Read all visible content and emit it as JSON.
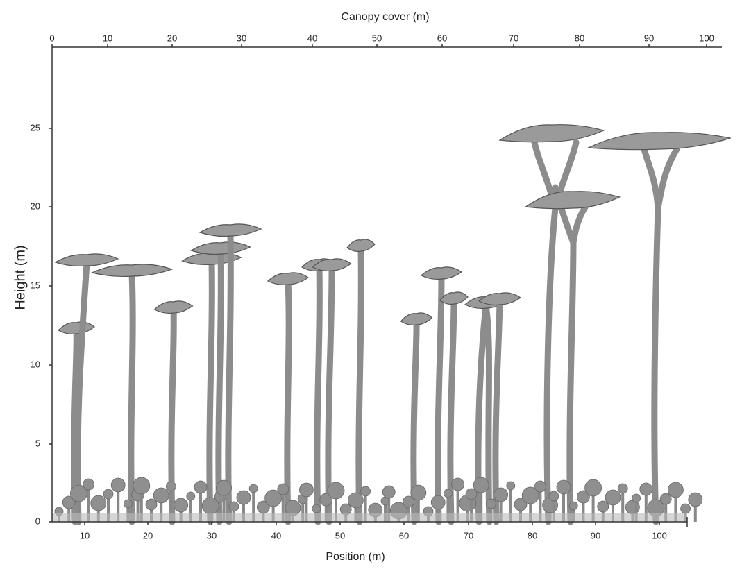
{
  "top_axis": {
    "title": "Canopy cover (m)",
    "ticks": [
      "0",
      "10",
      "20",
      "30",
      "40",
      "50",
      "60",
      "70",
      "80",
      "90",
      "100"
    ]
  },
  "bottom_axis": {
    "title": "Position (m)",
    "ticks": [
      "10",
      "20",
      "30",
      "40",
      "50",
      "60",
      "70",
      "80",
      "90",
      "100"
    ]
  },
  "left_axis": {
    "title": "Height (m)",
    "ticks": [
      "0",
      "5",
      "10",
      "15",
      "20",
      "25"
    ]
  }
}
